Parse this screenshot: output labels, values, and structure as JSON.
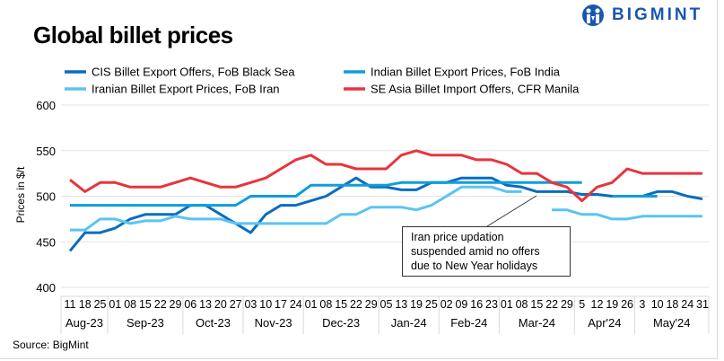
{
  "chart_data": {
    "type": "line",
    "title": "Global billet prices",
    "ylabel": "Prices in $/t",
    "xlabel": "",
    "ylim": [
      400,
      600
    ],
    "yticks": [
      400,
      450,
      500,
      550,
      600
    ],
    "grid": true,
    "legend_placement": "top",
    "x_ticks": [
      "11",
      "18",
      "25",
      "01",
      "08",
      "15",
      "22",
      "29",
      "06",
      "13",
      "20",
      "27",
      "03",
      "10",
      "17",
      "24",
      "01",
      "08",
      "15",
      "22",
      "29",
      "05",
      "13",
      "19",
      "25",
      "02",
      "09",
      "16",
      "23",
      "01",
      "08",
      "15",
      "22",
      "29",
      "5",
      "12",
      "19",
      "26",
      "3",
      "10",
      "18",
      "24",
      "31"
    ],
    "months": [
      {
        "label": "Aug-23",
        "count": 3
      },
      {
        "label": "Sep-23",
        "count": 5
      },
      {
        "label": "Oct-23",
        "count": 4
      },
      {
        "label": "Nov-23",
        "count": 4
      },
      {
        "label": "Dec-23",
        "count": 5
      },
      {
        "label": "Jan-24",
        "count": 4
      },
      {
        "label": "Feb-24",
        "count": 4
      },
      {
        "label": "Mar-24",
        "count": 5
      },
      {
        "label": "Apr'24",
        "count": 4
      },
      {
        "label": "May'24",
        "count": 5
      }
    ],
    "series": [
      {
        "name": "CIS Billet Export Offers, FoB Black Sea",
        "color": "#0a6cbf",
        "values": [
          440,
          460,
          460,
          465,
          475,
          480,
          480,
          480,
          490,
          490,
          480,
          470,
          460,
          480,
          490,
          490,
          495,
          500,
          510,
          520,
          510,
          510,
          507,
          507,
          515,
          515,
          520,
          520,
          520,
          512,
          510,
          505,
          505,
          505,
          502,
          502,
          500,
          500,
          500,
          505,
          505,
          500,
          497
        ]
      },
      {
        "name": "Indian Billet Export Prices, FoB India",
        "color": "#0f9ddb",
        "values": [
          490,
          490,
          490,
          490,
          490,
          490,
          490,
          490,
          490,
          490,
          490,
          490,
          500,
          500,
          500,
          500,
          512,
          512,
          512,
          512,
          512,
          512,
          515,
          515,
          515,
          515,
          515,
          515,
          515,
          515,
          515,
          515,
          515,
          515,
          515,
          null,
          500,
          500,
          500,
          500,
          null,
          null,
          null
        ]
      },
      {
        "name": "Iranian Billet Export Prices, FoB Iran",
        "color": "#5bc4f1",
        "values": [
          463,
          463,
          475,
          475,
          470,
          473,
          473,
          478,
          475,
          475,
          475,
          470,
          470,
          470,
          470,
          470,
          470,
          470,
          480,
          480,
          488,
          488,
          488,
          485,
          490,
          500,
          510,
          510,
          510,
          505,
          505,
          null,
          485,
          485,
          480,
          480,
          475,
          475,
          478,
          478,
          478,
          478,
          478
        ]
      },
      {
        "name": "SE Asia Billet Import Offers, CFR Manila",
        "color": "#e8343c",
        "values": [
          518,
          505,
          515,
          515,
          510,
          510,
          510,
          515,
          520,
          515,
          510,
          510,
          515,
          520,
          530,
          540,
          545,
          535,
          535,
          530,
          530,
          530,
          545,
          550,
          545,
          545,
          545,
          540,
          540,
          535,
          525,
          525,
          515,
          510,
          495,
          510,
          515,
          530,
          525,
          525,
          525,
          525,
          525
        ]
      }
    ],
    "annotation": {
      "lines": [
        "Iran price updation",
        "suspended amid no offers",
        "due to New Year holidays"
      ]
    }
  },
  "logo": {
    "text": "BIGMINT",
    "color": "#1a56b0"
  },
  "source": "Source: BigMint"
}
